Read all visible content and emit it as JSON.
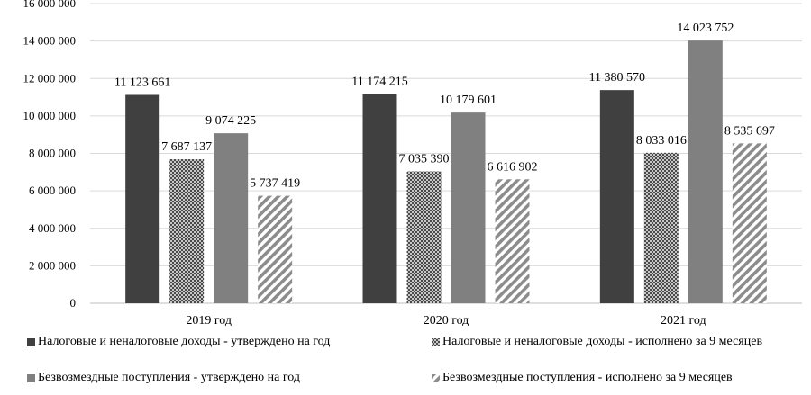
{
  "chart_data": {
    "type": "bar",
    "title": "",
    "xlabel": "",
    "ylabel": "",
    "categories": [
      "2019 год",
      "2020 год",
      "2021 год"
    ],
    "ylim": [
      0,
      16000000
    ],
    "y_ticks": [
      0,
      2000000,
      4000000,
      6000000,
      8000000,
      10000000,
      12000000,
      14000000,
      16000000
    ],
    "y_tick_labels": [
      "0",
      "2 000 000",
      "4 000 000",
      "6 000 000",
      "8 000 000",
      "10 000 000",
      "12 000 000",
      "14 000 000",
      "16 000 000"
    ],
    "grid": "horizontal",
    "legend_position": "bottom",
    "series": [
      {
        "name": "Налоговые и неналоговые доходы - утверждено на год",
        "values": [
          11123661,
          11174215,
          11380570
        ],
        "labels": [
          "11 123 661",
          "11 174 215",
          "11 380 570"
        ],
        "color": "#404040",
        "pattern": "solid"
      },
      {
        "name": "Налоговые и неналоговые доходы - исполнено за 9 месяцев",
        "values": [
          7687137,
          7035390,
          8033016
        ],
        "labels": [
          "7 687 137",
          "7 035 390",
          "8 033 016"
        ],
        "color": "#404040",
        "pattern": "dense-crosshatch"
      },
      {
        "name": "Безвозмездные поступления - утверждено на год",
        "values": [
          9074225,
          10179601,
          14023752
        ],
        "labels": [
          "9 074 225",
          "10 179 601",
          "14 023 752"
        ],
        "color": "#808080",
        "pattern": "solid"
      },
      {
        "name": "Безвозмездные поступления - исполнено за 9 месяцев",
        "values": [
          5737419,
          6616902,
          8535697
        ],
        "labels": [
          "5 737 419",
          "6 616 902",
          "8 535 697"
        ],
        "color": "#808080",
        "pattern": "wide-diagonal"
      }
    ]
  }
}
